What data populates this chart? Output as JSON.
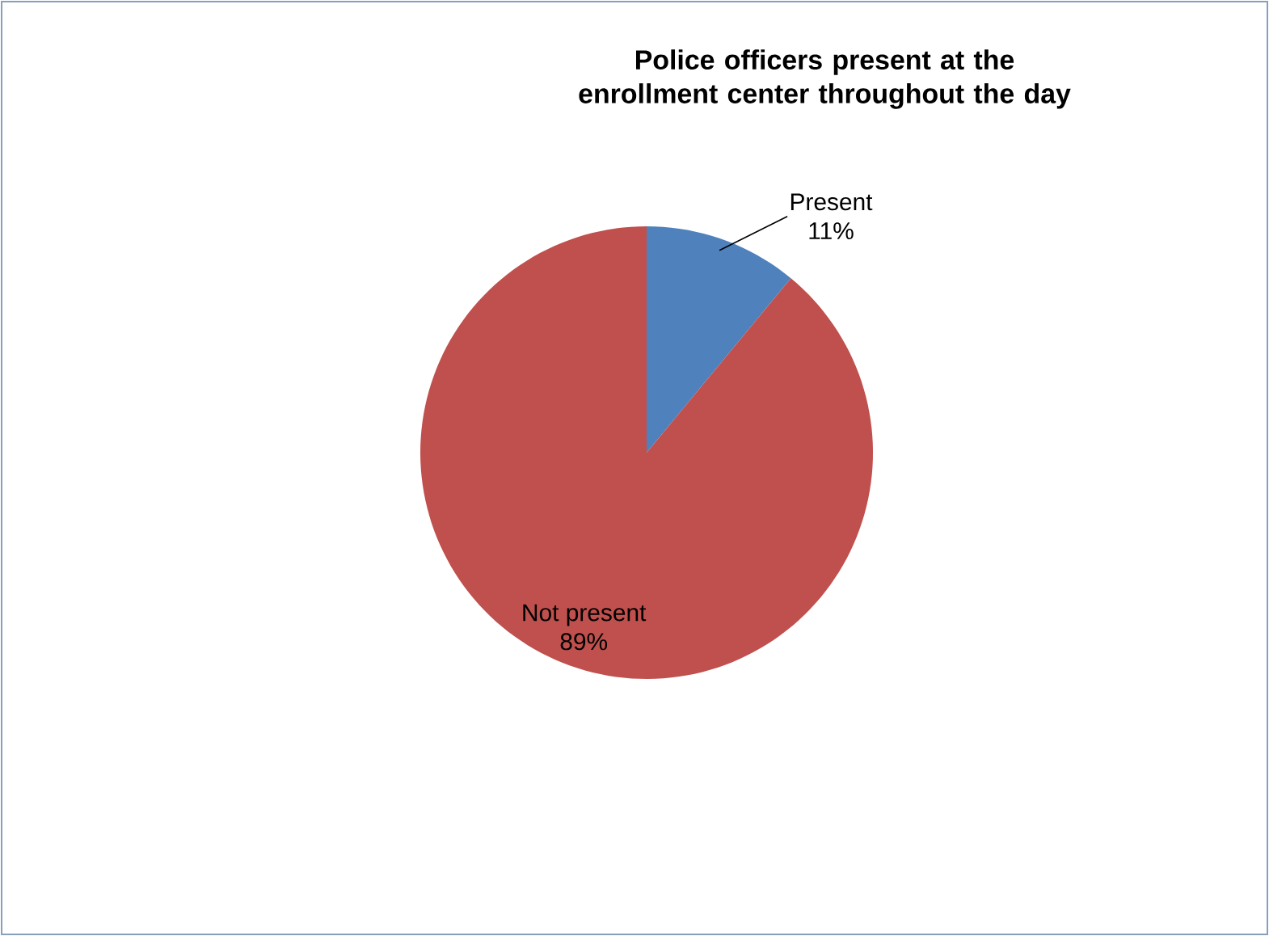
{
  "chart_data": {
    "type": "pie",
    "title": "Police officers present at the enrollment center throughout the day",
    "categories": [
      "Present",
      "Not present"
    ],
    "values": [
      11,
      89
    ],
    "value_labels": [
      "11%",
      "89%"
    ],
    "colors": [
      "#4f81bd",
      "#c0504d"
    ]
  }
}
